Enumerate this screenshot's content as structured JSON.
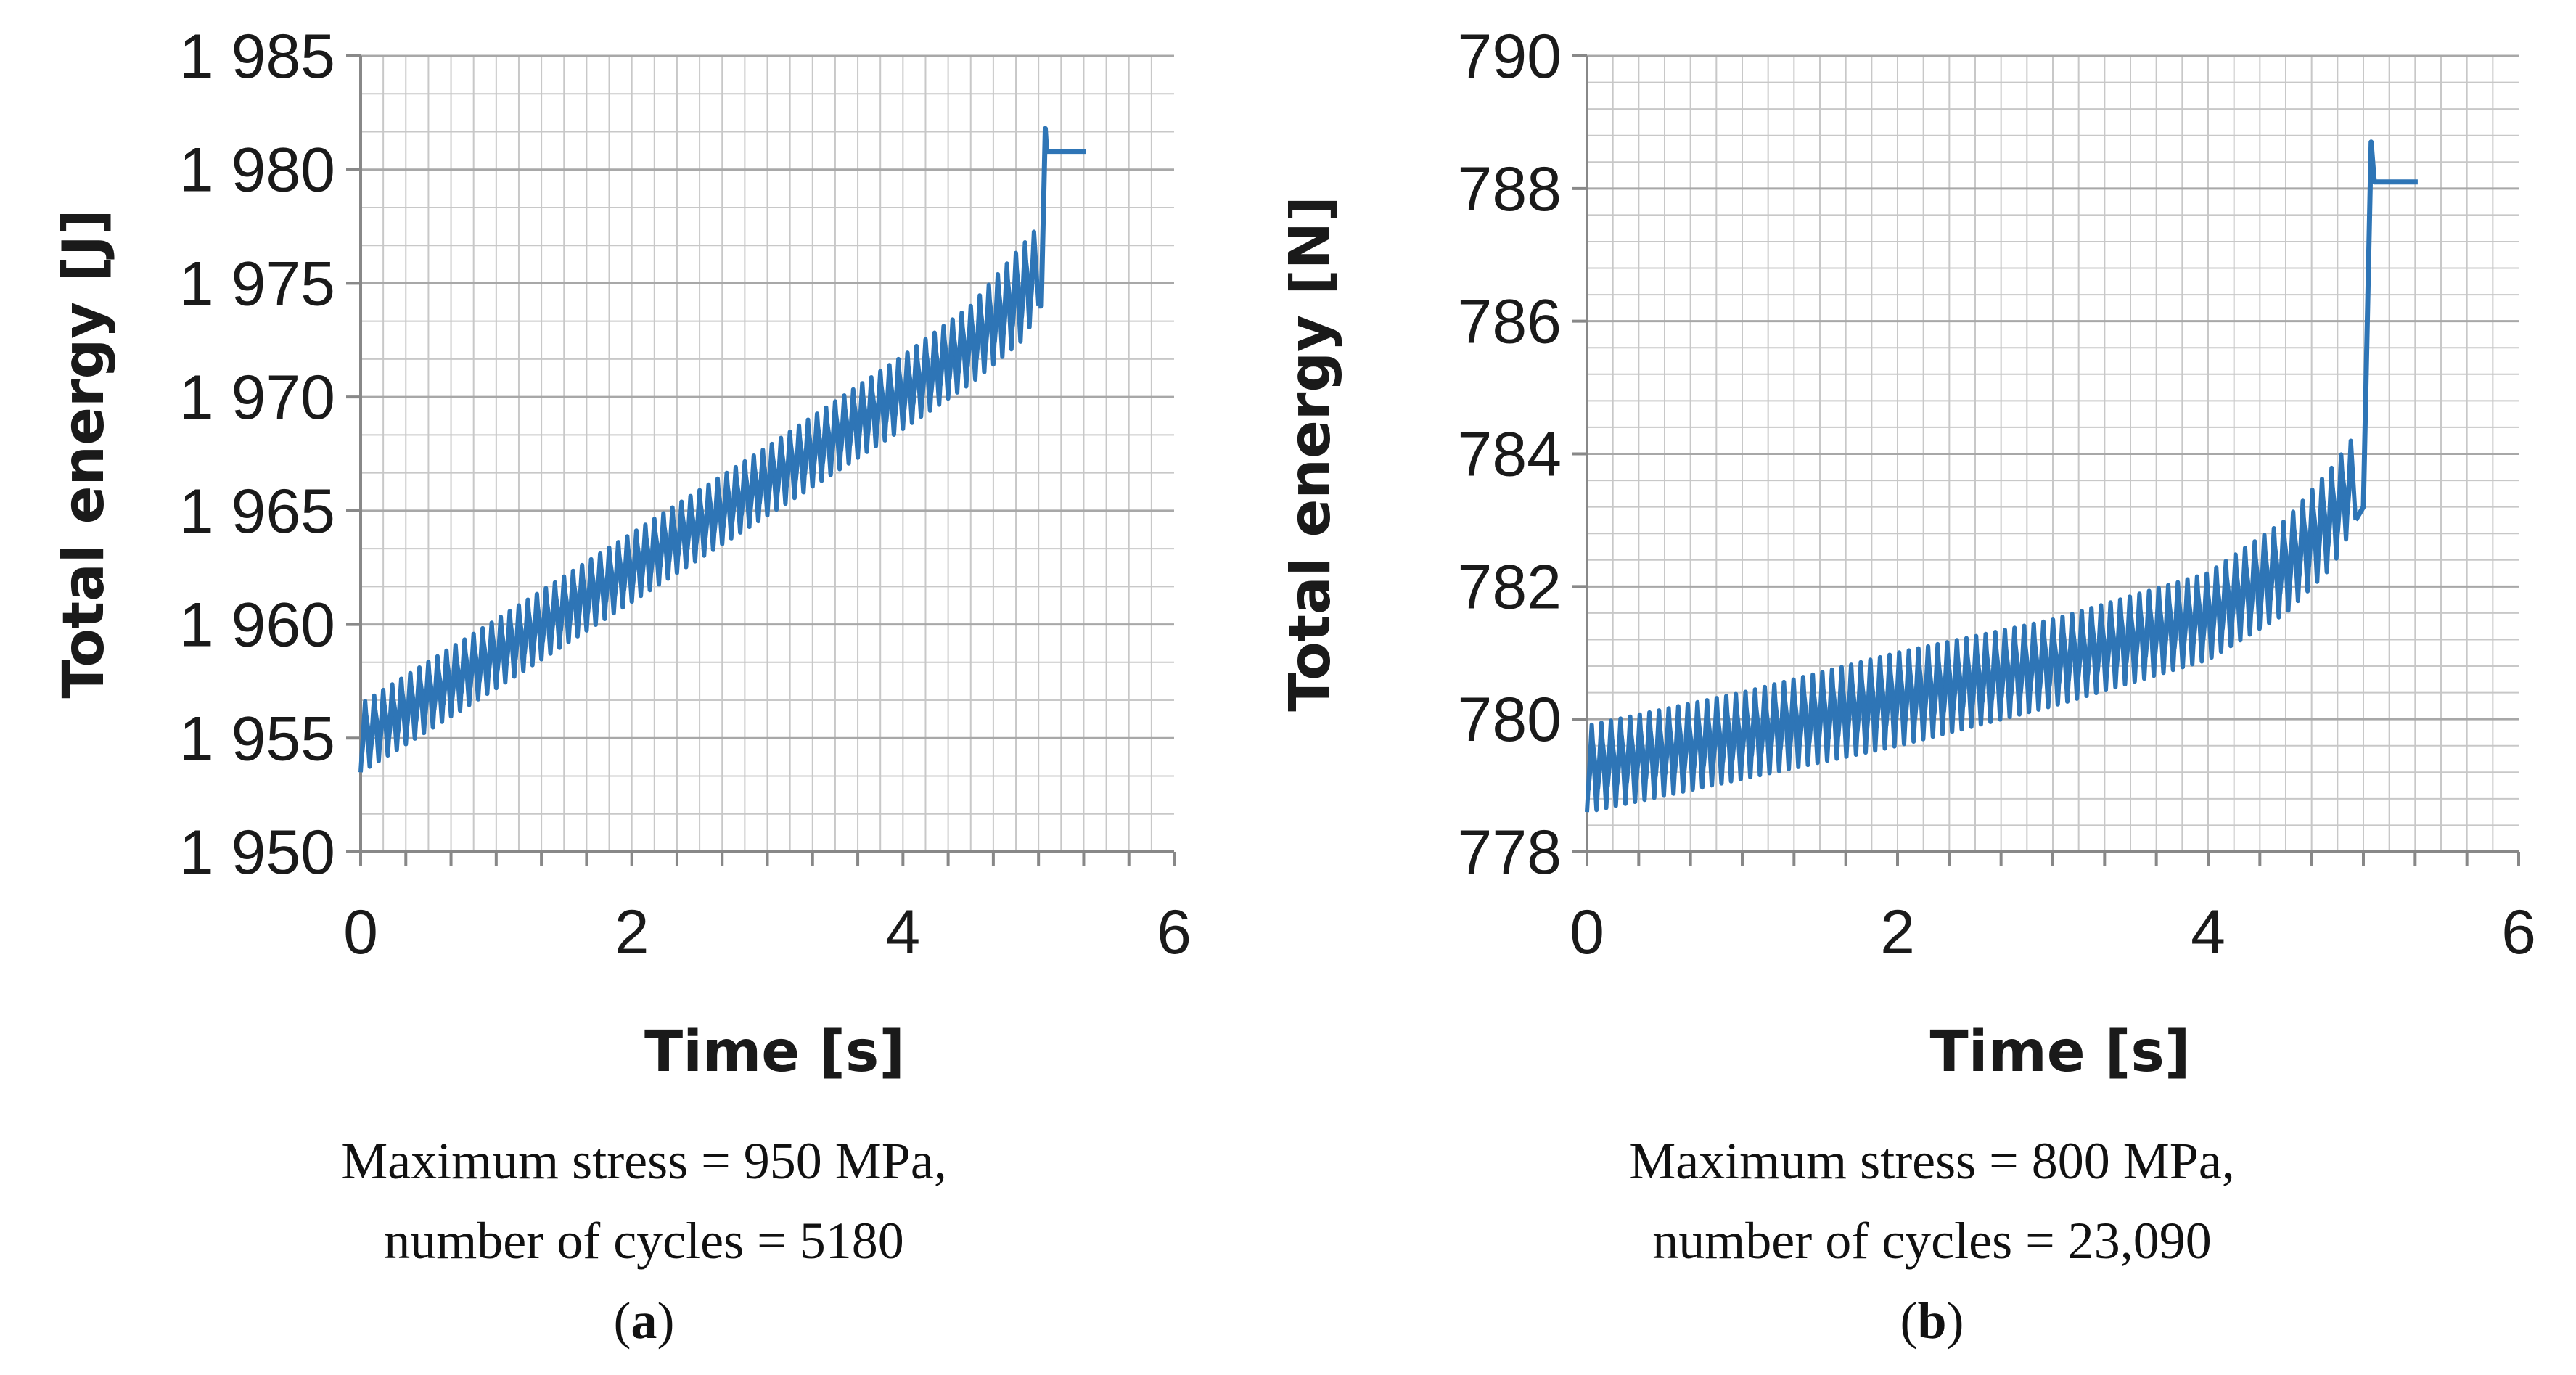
{
  "chart_data": [
    {
      "type": "line",
      "panel_label": "a",
      "xlabel": "Time [s]",
      "ylabel": "Total energy [J]",
      "xlim": [
        0,
        6
      ],
      "ylim": [
        1950,
        1985
      ],
      "x_ticks": [
        0,
        2,
        4,
        6
      ],
      "y_ticks": [
        1950,
        1955,
        1960,
        1965,
        1970,
        1975,
        1980,
        1985
      ],
      "x_tick_labels": [
        "0",
        "2",
        "4",
        "6"
      ],
      "y_tick_labels": [
        "1 950",
        "1 955",
        "1 960",
        "1 965",
        "1 970",
        "1 975",
        "1 980",
        "1 985"
      ],
      "grid": true,
      "series_color": "#2e75b6",
      "oscillation": {
        "cycles_shown": 75,
        "lower_envelope": [
          [
            0.0,
            1953.5
          ],
          [
            1.0,
            1957.2
          ],
          [
            2.0,
            1961.0
          ],
          [
            3.0,
            1964.8
          ],
          [
            4.0,
            1968.6
          ],
          [
            4.5,
            1970.6
          ],
          [
            4.9,
            1972.6
          ],
          [
            5.0,
            1974.0
          ]
        ],
        "upper_envelope": [
          [
            0.0,
            1956.5
          ],
          [
            1.0,
            1960.2
          ],
          [
            2.0,
            1964.0
          ],
          [
            3.0,
            1967.8
          ],
          [
            4.0,
            1971.8
          ],
          [
            4.5,
            1974.0
          ],
          [
            4.9,
            1976.8
          ],
          [
            5.0,
            1977.5
          ]
        ]
      },
      "final_spike": [
        [
          5.02,
          1974.0
        ],
        [
          5.05,
          1981.8
        ],
        [
          5.06,
          1980.8
        ],
        [
          5.35,
          1980.8
        ]
      ],
      "caption_line1": "Maximum stress = 950 MPa,",
      "caption_line2": "number of cycles = 5180"
    },
    {
      "type": "line",
      "panel_label": "b",
      "xlabel": "Time [s]",
      "ylabel": "Total energy [N]",
      "xlim": [
        0,
        6
      ],
      "ylim": [
        778,
        790
      ],
      "x_ticks": [
        0,
        2,
        4,
        6
      ],
      "y_ticks": [
        778,
        780,
        782,
        784,
        786,
        788,
        790
      ],
      "x_tick_labels": [
        "0",
        "2",
        "4",
        "6"
      ],
      "y_tick_labels": [
        "778",
        "780",
        "782",
        "784",
        "786",
        "788",
        "790"
      ],
      "grid": true,
      "series_color": "#2e75b6",
      "oscillation": {
        "cycles_shown": 80,
        "lower_envelope": [
          [
            0.0,
            778.6
          ],
          [
            1.0,
            779.1
          ],
          [
            2.0,
            779.6
          ],
          [
            3.0,
            780.2
          ],
          [
            4.0,
            780.9
          ],
          [
            4.5,
            781.6
          ],
          [
            4.8,
            782.3
          ],
          [
            4.95,
            783.0
          ]
        ],
        "upper_envelope": [
          [
            0.0,
            779.9
          ],
          [
            1.0,
            780.4
          ],
          [
            2.0,
            781.0
          ],
          [
            3.0,
            781.5
          ],
          [
            4.0,
            782.2
          ],
          [
            4.5,
            783.0
          ],
          [
            4.8,
            783.8
          ],
          [
            4.95,
            784.3
          ]
        ]
      },
      "final_spike": [
        [
          5.0,
          783.2
        ],
        [
          5.05,
          788.7
        ],
        [
          5.07,
          788.1
        ],
        [
          5.35,
          788.1
        ]
      ],
      "caption_line1": "Maximum stress = 800 MPa,",
      "caption_line2": "number of cycles = 23,090"
    }
  ]
}
